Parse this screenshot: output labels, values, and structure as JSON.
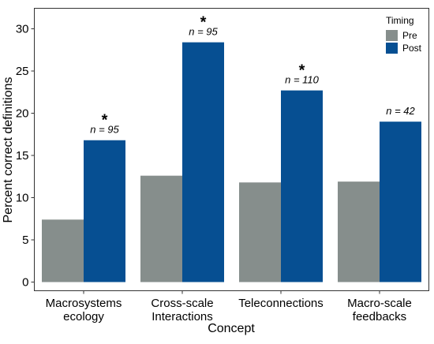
{
  "chart_data": {
    "type": "bar",
    "xlabel": "Concept",
    "ylabel": "Percent correct definitions",
    "ylim": [
      0,
      31
    ],
    "yticks": [
      0,
      5,
      10,
      15,
      20,
      25,
      30
    ],
    "categories": [
      {
        "lines": [
          "Macrosystems",
          "ecology"
        ]
      },
      {
        "lines": [
          "Cross-scale",
          "Interactions"
        ]
      },
      {
        "lines": [
          "Teleconnections"
        ]
      },
      {
        "lines": [
          "Macro-scale",
          "feedbacks"
        ]
      }
    ],
    "series": [
      {
        "name": "Pre",
        "color": "#868e8c",
        "values": [
          7.4,
          12.6,
          11.8,
          11.9
        ]
      },
      {
        "name": "Post",
        "color": "#064f92",
        "values": [
          16.8,
          28.4,
          22.7,
          19.0
        ]
      }
    ],
    "legend": {
      "title": "Timing",
      "position": "top-right"
    },
    "annotations": [
      {
        "n_label": "n = 95",
        "significant": true,
        "star": "*"
      },
      {
        "n_label": "n = 95",
        "significant": true,
        "star": "*"
      },
      {
        "n_label": "n = 110",
        "significant": true,
        "star": "*"
      },
      {
        "n_label": "n = 42",
        "significant": false,
        "star": ""
      }
    ],
    "grid": false
  }
}
